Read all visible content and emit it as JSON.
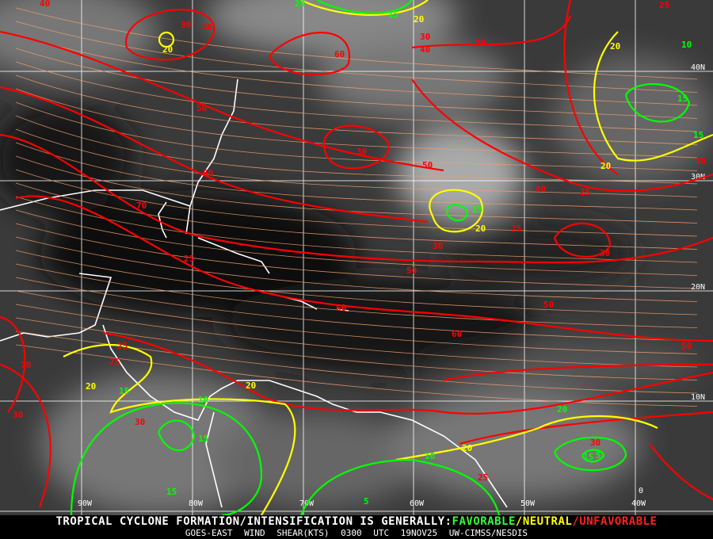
{
  "map": {
    "latitude_labels": [
      "40N",
      "30N",
      "20N",
      "10N",
      "0"
    ],
    "longitude_labels": [
      "90W",
      "80W",
      "70W",
      "60W",
      "50W",
      "40W"
    ],
    "contour_labels": [
      {
        "value": "20",
        "color": "#ffff00"
      },
      {
        "value": "30",
        "color": "#ff0000"
      },
      {
        "value": "40",
        "color": "#ff0000"
      },
      {
        "value": "40",
        "color": "#ff0000"
      },
      {
        "value": "20",
        "color": "#00ff00"
      },
      {
        "value": "15",
        "color": "#00ff00"
      },
      {
        "value": "20",
        "color": "#ffff00"
      },
      {
        "value": "30",
        "color": "#ff0000"
      },
      {
        "value": "40",
        "color": "#ff0000"
      },
      {
        "value": "30",
        "color": "#ff0000"
      },
      {
        "value": "60",
        "color": "#ff0000"
      },
      {
        "value": "50",
        "color": "#ff0000"
      },
      {
        "value": "25",
        "color": "#ff0000"
      },
      {
        "value": "20",
        "color": "#ffff00"
      },
      {
        "value": "15",
        "color": "#00ff00"
      },
      {
        "value": "15",
        "color": "#00ff00"
      },
      {
        "value": "20",
        "color": "#ffff00"
      },
      {
        "value": "30",
        "color": "#ff0000"
      },
      {
        "value": "50",
        "color": "#ff0000"
      },
      {
        "value": "40",
        "color": "#ff0000"
      },
      {
        "value": "60",
        "color": "#ff0000"
      },
      {
        "value": "70",
        "color": "#ff0000"
      },
      {
        "value": "30",
        "color": "#ff0000"
      },
      {
        "value": "25",
        "color": "#ff0000"
      },
      {
        "value": "30",
        "color": "#ff0000"
      },
      {
        "value": "15",
        "color": "#00ff00"
      },
      {
        "value": "20",
        "color": "#ffff00"
      },
      {
        "value": "25",
        "color": "#ff0000"
      },
      {
        "value": "30",
        "color": "#ff0000"
      },
      {
        "value": "25",
        "color": "#ff0000"
      },
      {
        "value": "50",
        "color": "#ff0000"
      },
      {
        "value": "50",
        "color": "#ff0000"
      },
      {
        "value": "60",
        "color": "#ff0000"
      },
      {
        "value": "60",
        "color": "#ff0000"
      },
      {
        "value": "50",
        "color": "#ff0000"
      },
      {
        "value": "70",
        "color": "#ff0000"
      },
      {
        "value": "25",
        "color": "#ff0000"
      },
      {
        "value": "20",
        "color": "#ffff00"
      },
      {
        "value": "25",
        "color": "#ff0000"
      },
      {
        "value": "15",
        "color": "#00ff00"
      },
      {
        "value": "20",
        "color": "#ffff00"
      },
      {
        "value": "30",
        "color": "#ff0000"
      },
      {
        "value": "30",
        "color": "#ff0000"
      },
      {
        "value": "10",
        "color": "#00ff00"
      },
      {
        "value": "15",
        "color": "#00ff00"
      },
      {
        "value": "15",
        "color": "#00ff00"
      },
      {
        "value": "5",
        "color": "#00ff00"
      },
      {
        "value": "10",
        "color": "#00ff00"
      },
      {
        "value": "20",
        "color": "#ffff00"
      },
      {
        "value": "25",
        "color": "#ff0000"
      },
      {
        "value": "20",
        "color": "#00ff00"
      },
      {
        "value": "30",
        "color": "#ff0000"
      },
      {
        "value": "15",
        "color": "#00ff00"
      },
      {
        "value": "5",
        "color": "#00ff00"
      },
      {
        "value": "10",
        "color": "#00ff00"
      },
      {
        "value": "30",
        "color": "#ff0000"
      }
    ]
  },
  "footer": {
    "prefix": "TROPICAL CYCLONE FORMATION/INTENSIFICATION IS GENERALLY:",
    "favorable": "FAVORABLE",
    "neutral": "NEUTRAL",
    "unfavorable": "UNFAVORABLE",
    "sep": "/",
    "product": "GOES-EAST WIND SHEAR(KTS)",
    "time": "0300 UTC",
    "date": "19NOV25",
    "source": "UW-CIMSS/NESDIS",
    "colors": {
      "favorable": "#33ff33",
      "neutral": "#ffff00",
      "unfavorable": "#ff2020"
    }
  }
}
